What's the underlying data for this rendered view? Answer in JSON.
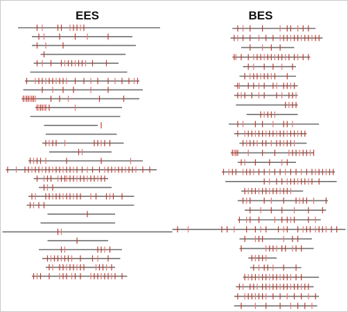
{
  "chart_data": [
    {
      "type": "event-plot",
      "title": "EES",
      "colors": {
        "line": "#6e6e6e",
        "tick_dark": "#c0392b",
        "tick_light": "#e57373"
      },
      "rows": [
        {
          "start": 0.1,
          "end": 0.92,
          "ticks": [
            0.21,
            0.24,
            0.33,
            0.35,
            0.4,
            0.42,
            0.44,
            0.46,
            0.48
          ]
        },
        {
          "start": 0.18,
          "end": 0.76,
          "ticks": [
            0.22,
            0.25,
            0.34,
            0.43,
            0.5,
            0.62
          ]
        },
        {
          "start": 0.18,
          "end": 0.78,
          "ticks": [
            0.21,
            0.26,
            0.36
          ]
        },
        {
          "start": 0.23,
          "end": 0.72,
          "ticks": [
            0.25
          ]
        },
        {
          "start": 0.19,
          "end": 0.68,
          "ticks": [
            0.21,
            0.24,
            0.29,
            0.35,
            0.37,
            0.39,
            0.41,
            0.43,
            0.45,
            0.47,
            0.49,
            0.53,
            0.61
          ]
        },
        {
          "start": 0.17,
          "end": 0.73,
          "ticks": []
        },
        {
          "start": 0.14,
          "end": 0.8,
          "ticks": [
            0.15,
            0.2,
            0.22,
            0.24,
            0.26,
            0.28,
            0.3,
            0.32,
            0.34,
            0.36,
            0.38,
            0.43,
            0.48,
            0.52,
            0.56,
            0.62,
            0.66,
            0.7,
            0.74,
            0.77,
            0.79
          ]
        },
        {
          "start": 0.13,
          "end": 0.82,
          "ticks": [
            0.24,
            0.3,
            0.36,
            0.42,
            0.52,
            0.62
          ]
        },
        {
          "start": 0.12,
          "end": 0.8,
          "ticks": [
            0.13,
            0.14,
            0.15,
            0.16,
            0.17,
            0.18,
            0.19,
            0.2,
            0.29,
            0.34,
            0.39,
            0.57,
            0.71
          ]
        },
        {
          "start": 0.2,
          "end": 0.7,
          "ticks": [
            0.21,
            0.22,
            0.23,
            0.24,
            0.25,
            0.26,
            0.28,
            0.43
          ]
        },
        {
          "start": 0.17,
          "end": 0.69,
          "ticks": []
        },
        {
          "start": 0.25,
          "end": 0.56,
          "ticks": [
            0.58
          ]
        },
        {
          "start": 0.26,
          "end": 0.67,
          "ticks": []
        },
        {
          "start": 0.24,
          "end": 0.71,
          "ticks": [
            0.26,
            0.28,
            0.3,
            0.32,
            0.37,
            0.54,
            0.56,
            0.58,
            0.6,
            0.63
          ]
        },
        {
          "start": 0.28,
          "end": 0.64,
          "ticks": [
            0.45,
            0.47
          ]
        },
        {
          "start": 0.16,
          "end": 0.82,
          "ticks": [
            0.17,
            0.19,
            0.21,
            0.23,
            0.26,
            0.38,
            0.58,
            0.75
          ]
        },
        {
          "start": 0.03,
          "end": 0.9,
          "ticks": [
            0.04,
            0.09,
            0.14,
            0.16,
            0.18,
            0.2,
            0.22,
            0.24,
            0.26,
            0.28,
            0.3,
            0.32,
            0.34,
            0.36,
            0.38,
            0.4,
            0.42,
            0.44,
            0.47,
            0.5,
            0.53,
            0.57,
            0.6,
            0.62,
            0.64,
            0.66,
            0.68,
            0.7,
            0.72,
            0.74,
            0.76,
            0.78,
            0.82,
            0.86
          ]
        },
        {
          "start": 0.19,
          "end": 0.62,
          "ticks": [
            0.21,
            0.25,
            0.27,
            0.29,
            0.33,
            0.35,
            0.37,
            0.38,
            0.4,
            0.42,
            0.44,
            0.46,
            0.48,
            0.5,
            0.52,
            0.54,
            0.56,
            0.58,
            0.6
          ]
        },
        {
          "start": 0.22,
          "end": 0.64,
          "ticks": [
            0.25,
            0.27,
            0.3
          ]
        },
        {
          "start": 0.16,
          "end": 0.77,
          "ticks": [
            0.18,
            0.2,
            0.26,
            0.28,
            0.3,
            0.32,
            0.34,
            0.36,
            0.38,
            0.4,
            0.42,
            0.44,
            0.46,
            0.52,
            0.55,
            0.61,
            0.63,
            0.65,
            0.7
          ]
        },
        {
          "start": 0.15,
          "end": 0.77,
          "ticks": [
            0.17,
            0.19,
            0.22,
            0.25
          ]
        },
        {
          "start": 0.27,
          "end": 0.66,
          "ticks": [
            0.5
          ]
        },
        {
          "start": 0.23,
          "end": 0.66,
          "ticks": []
        },
        {
          "start": 0.01,
          "end": 0.99,
          "ticks": [
            0.33,
            0.35
          ]
        },
        {
          "start": 0.27,
          "end": 0.62,
          "ticks": [
            0.44
          ]
        },
        {
          "start": 0.22,
          "end": 0.7,
          "ticks": [
            0.35,
            0.37,
            0.56,
            0.58,
            0.6,
            0.63
          ]
        },
        {
          "start": 0.24,
          "end": 0.69,
          "ticks": [
            0.27,
            0.29,
            0.31,
            0.33,
            0.35,
            0.37,
            0.39,
            0.41,
            0.46,
            0.53,
            0.56,
            0.62
          ]
        },
        {
          "start": 0.26,
          "end": 0.66,
          "ticks": [
            0.28,
            0.3,
            0.34,
            0.36,
            0.38,
            0.4,
            0.42,
            0.44,
            0.46,
            0.48,
            0.55,
            0.57,
            0.59,
            0.61,
            0.64
          ]
        },
        {
          "start": 0.18,
          "end": 0.73,
          "ticks": [
            0.19,
            0.21,
            0.23,
            0.28,
            0.34,
            0.36,
            0.38,
            0.41,
            0.43,
            0.46,
            0.52,
            0.54,
            0.56,
            0.58,
            0.6,
            0.62,
            0.64,
            0.66,
            0.7
          ]
        }
      ]
    },
    {
      "type": "event-plot",
      "title": "BES",
      "colors": {
        "line": "#6e6e6e",
        "tick_dark": "#c0392b",
        "tick_light": "#e57373"
      },
      "rows": [
        {
          "start": 0.35,
          "end": 0.82,
          "ticks": [
            0.38,
            0.41,
            0.45,
            0.52,
            0.62,
            0.66,
            0.68,
            0.72,
            0.75,
            0.78
          ]
        },
        {
          "start": 0.34,
          "end": 0.86,
          "ticks": [
            0.36,
            0.38,
            0.41,
            0.45,
            0.5,
            0.54,
            0.58,
            0.62,
            0.64,
            0.66,
            0.68,
            0.7,
            0.72,
            0.74,
            0.76,
            0.78,
            0.8,
            0.82,
            0.84
          ]
        },
        {
          "start": 0.4,
          "end": 0.7,
          "ticks": [
            0.45,
            0.52,
            0.57,
            0.62
          ]
        },
        {
          "start": 0.35,
          "end": 0.79,
          "ticks": [
            0.36,
            0.37,
            0.4,
            0.44,
            0.47,
            0.49,
            0.51,
            0.53,
            0.55,
            0.57,
            0.59,
            0.61,
            0.63,
            0.65,
            0.67,
            0.7,
            0.72,
            0.75,
            0.78
          ]
        },
        {
          "start": 0.41,
          "end": 0.71,
          "ticks": [
            0.44,
            0.47,
            0.53,
            0.58,
            0.63,
            0.69
          ]
        },
        {
          "start": 0.39,
          "end": 0.71,
          "ticks": [
            0.42,
            0.45,
            0.47,
            0.49,
            0.51,
            0.53,
            0.55,
            0.57,
            0.59,
            0.66
          ]
        },
        {
          "start": 0.36,
          "end": 0.72,
          "ticks": [
            0.38,
            0.39,
            0.44,
            0.47,
            0.5,
            0.53,
            0.58,
            0.6,
            0.64,
            0.66,
            0.68,
            0.7
          ]
        },
        {
          "start": 0.36,
          "end": 0.72,
          "ticks": [
            0.38,
            0.4,
            0.42,
            0.46,
            0.5,
            0.53,
            0.6,
            0.63,
            0.67,
            0.69,
            0.71
          ]
        },
        {
          "start": 0.37,
          "end": 0.72,
          "ticks": [
            0.65,
            0.67,
            0.69,
            0.71
          ]
        },
        {
          "start": 0.43,
          "end": 0.72,
          "ticks": [
            0.51,
            0.53,
            0.55,
            0.57,
            0.59
          ]
        },
        {
          "start": 0.33,
          "end": 0.84,
          "ticks": [
            0.38,
            0.41,
            0.48,
            0.52,
            0.58,
            0.64,
            0.66,
            0.69
          ]
        },
        {
          "start": 0.36,
          "end": 0.77,
          "ticks": [
            0.38,
            0.42,
            0.44,
            0.46,
            0.48,
            0.5,
            0.52,
            0.54,
            0.56,
            0.58,
            0.6,
            0.62,
            0.64,
            0.66,
            0.68,
            0.7,
            0.72,
            0.74,
            0.76
          ]
        },
        {
          "start": 0.39,
          "end": 0.77,
          "ticks": [
            0.41,
            0.43,
            0.45,
            0.47,
            0.49,
            0.52,
            0.54,
            0.57,
            0.6,
            0.62,
            0.64,
            0.66,
            0.68,
            0.7
          ]
        },
        {
          "start": 0.34,
          "end": 0.81,
          "ticks": [
            0.35,
            0.36,
            0.37,
            0.38,
            0.44,
            0.52,
            0.59,
            0.67,
            0.69,
            0.71,
            0.73,
            0.75,
            0.77,
            0.79,
            0.81
          ]
        },
        {
          "start": 0.38,
          "end": 0.71,
          "ticks": [
            0.4,
            0.42,
            0.48,
            0.56,
            0.63,
            0.66
          ]
        },
        {
          "start": 0.29,
          "end": 0.93,
          "ticks": [
            0.3,
            0.33,
            0.35,
            0.37,
            0.41,
            0.43,
            0.45,
            0.47,
            0.5,
            0.53,
            0.56,
            0.59,
            0.62,
            0.65,
            0.68,
            0.71,
            0.74,
            0.77,
            0.8,
            0.82,
            0.84,
            0.86,
            0.88,
            0.9,
            0.92
          ]
        },
        {
          "start": 0.31,
          "end": 0.94,
          "ticks": [
            0.53,
            0.56,
            0.6,
            0.63,
            0.66,
            0.68,
            0.7,
            0.72,
            0.74,
            0.76,
            0.78,
            0.8,
            0.84
          ]
        },
        {
          "start": 0.4,
          "end": 0.75,
          "ticks": [
            0.42,
            0.44,
            0.46,
            0.48,
            0.5,
            0.52,
            0.54,
            0.56,
            0.58,
            0.6,
            0.62,
            0.64,
            0.66,
            0.68
          ]
        },
        {
          "start": 0.38,
          "end": 0.89,
          "ticks": [
            0.41,
            0.43,
            0.45,
            0.53,
            0.57,
            0.64,
            0.71,
            0.73,
            0.75,
            0.77,
            0.81,
            0.88
          ]
        },
        {
          "start": 0.42,
          "end": 0.88,
          "ticks": [
            0.45,
            0.51,
            0.57,
            0.63,
            0.7,
            0.78,
            0.86
          ]
        },
        {
          "start": 0.38,
          "end": 0.85,
          "ticks": [
            0.39,
            0.43,
            0.45,
            0.5,
            0.59,
            0.63,
            0.66,
            0.68,
            0.7,
            0.78,
            0.82
          ]
        },
        {
          "start": 0.01,
          "end": 0.99,
          "ticks": [
            0.04,
            0.1,
            0.29,
            0.32,
            0.36,
            0.43,
            0.48,
            0.51,
            0.54,
            0.61,
            0.64,
            0.66,
            0.72,
            0.75,
            0.77,
            0.79,
            0.82,
            0.84,
            0.86,
            0.88,
            0.91,
            0.94
          ]
        },
        {
          "start": 0.39,
          "end": 0.8,
          "ticks": [
            0.42,
            0.48,
            0.5,
            0.52,
            0.64,
            0.69,
            0.72
          ]
        },
        {
          "start": 0.39,
          "end": 0.81,
          "ticks": [
            0.4,
            0.54,
            0.56,
            0.58,
            0.6,
            0.63,
            0.65,
            0.69,
            0.71,
            0.74
          ]
        },
        {
          "start": 0.44,
          "end": 0.6,
          "ticks": [
            0.46,
            0.48,
            0.5,
            0.52,
            0.54
          ]
        },
        {
          "start": 0.45,
          "end": 0.74,
          "ticks": [
            0.47,
            0.5,
            0.53,
            0.55,
            0.58,
            0.64,
            0.71
          ]
        },
        {
          "start": 0.41,
          "end": 0.84,
          "ticks": [
            0.42,
            0.44,
            0.46,
            0.48,
            0.5,
            0.52,
            0.54,
            0.56,
            0.58,
            0.6,
            0.62,
            0.64,
            0.66,
            0.68,
            0.71,
            0.74
          ]
        },
        {
          "start": 0.37,
          "end": 0.81,
          "ticks": [
            0.39,
            0.41,
            0.45,
            0.47,
            0.49,
            0.52,
            0.54,
            0.56,
            0.58,
            0.6,
            0.62,
            0.64,
            0.66,
            0.68,
            0.7,
            0.72,
            0.74,
            0.76,
            0.78
          ]
        },
        {
          "start": 0.36,
          "end": 0.84,
          "ticks": [
            0.38,
            0.42,
            0.44,
            0.46,
            0.48,
            0.5,
            0.52,
            0.54,
            0.58,
            0.62,
            0.66,
            0.7,
            0.74,
            0.78,
            0.82
          ]
        },
        {
          "start": 0.36,
          "end": 0.83,
          "ticks": [
            0.4,
            0.48,
            0.54,
            0.62,
            0.68,
            0.72,
            0.76,
            0.8
          ]
        }
      ]
    }
  ]
}
